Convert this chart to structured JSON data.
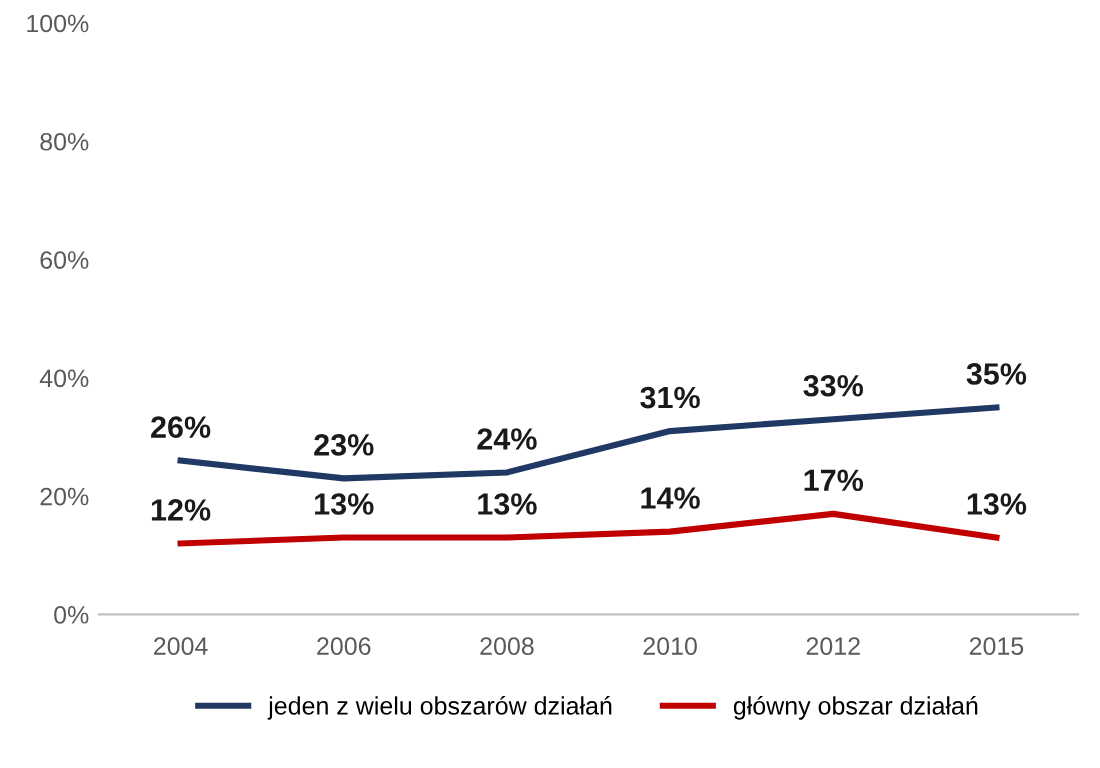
{
  "chart_data": {
    "type": "line",
    "categories": [
      "2004",
      "2006",
      "2008",
      "2010",
      "2012",
      "2015"
    ],
    "series": [
      {
        "name": "jeden z wielu obszarów działań",
        "color": "#1f3864",
        "values": [
          26,
          23,
          24,
          31,
          33,
          35
        ],
        "value_labels": [
          "26%",
          "23%",
          "24%",
          "31%",
          "33%",
          "35%"
        ]
      },
      {
        "name": "główny obszar działań",
        "color": "#c00000",
        "values": [
          12,
          13,
          13,
          14,
          17,
          13
        ],
        "value_labels": [
          "12%",
          "13%",
          "13%",
          "14%",
          "17%",
          "13%"
        ]
      }
    ],
    "ylim": [
      0,
      100
    ],
    "yticks": [
      {
        "value": 0,
        "label": "0%"
      },
      {
        "value": 20,
        "label": "20%"
      },
      {
        "value": 40,
        "label": "40%"
      },
      {
        "value": 60,
        "label": "60%"
      },
      {
        "value": 80,
        "label": "80%"
      },
      {
        "value": 100,
        "label": "100%"
      }
    ],
    "grid": false,
    "legend": "bottom",
    "marker": "none",
    "line_style": "solid"
  }
}
